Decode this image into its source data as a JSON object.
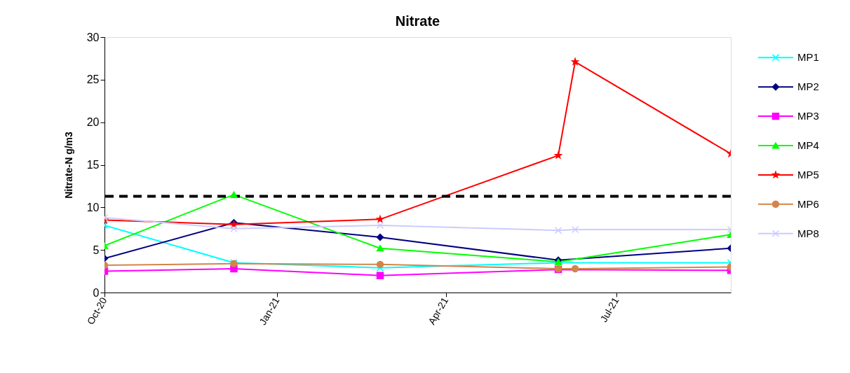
{
  "chart_data": {
    "type": "line",
    "title": "Nitrate",
    "ylabel": "Nitrate-N g/m3",
    "xlim": [
      "2020-10-01",
      "2021-08-31"
    ],
    "ylim": [
      0,
      30
    ],
    "yticks": [
      0,
      5,
      10,
      15,
      20,
      25,
      30
    ],
    "xticks": [
      {
        "value": "2020-10-01",
        "label": "Oct-20"
      },
      {
        "value": "2021-01-01",
        "label": "Jan-21"
      },
      {
        "value": "2021-04-01",
        "label": "Apr-21"
      },
      {
        "value": "2021-07-01",
        "label": "Jul-21"
      }
    ],
    "grid": false,
    "legend": "right",
    "line_style": "solid",
    "ref_lines": [
      {
        "axis": "y",
        "value": 11.3,
        "color": "#000000",
        "line_style": "dashed"
      }
    ],
    "series": [
      {
        "name": "MP1",
        "color": "#00ffff",
        "marker": "cross",
        "x": [
          "2020-10-01",
          "2020-12-09",
          "2021-02-25",
          "2021-05-31",
          "2021-08-31"
        ],
        "values": [
          7.9,
          3.5,
          2.9,
          3.5,
          3.5
        ]
      },
      {
        "name": "MP2",
        "color": "#000080",
        "marker": "diamond",
        "x": [
          "2020-10-01",
          "2020-12-09",
          "2021-02-25",
          "2021-05-31",
          "2021-08-31"
        ],
        "values": [
          4.0,
          8.2,
          6.5,
          3.8,
          5.2
        ]
      },
      {
        "name": "MP3",
        "color": "#ff00ff",
        "marker": "square",
        "x": [
          "2020-10-01",
          "2020-12-09",
          "2021-02-25",
          "2021-05-31",
          "2021-08-31"
        ],
        "values": [
          2.5,
          2.8,
          2.0,
          2.7,
          2.6
        ]
      },
      {
        "name": "MP4",
        "color": "#00ff00",
        "marker": "triangle",
        "x": [
          "2020-10-01",
          "2020-12-09",
          "2021-02-25",
          "2021-05-31",
          "2021-08-31"
        ],
        "values": [
          5.5,
          11.5,
          5.2,
          3.6,
          6.8
        ]
      },
      {
        "name": "MP5",
        "color": "#ff0000",
        "marker": "star",
        "x": [
          "2020-10-01",
          "2020-12-09",
          "2021-02-25",
          "2021-05-31",
          "2021-06-09",
          "2021-08-31"
        ],
        "values": [
          8.5,
          8.0,
          8.6,
          16.1,
          27.1,
          16.3
        ]
      },
      {
        "name": "MP6",
        "color": "#d2854a",
        "marker": "circle",
        "x": [
          "2020-10-01",
          "2020-12-09",
          "2021-02-25",
          "2021-05-31",
          "2021-06-09",
          "2021-08-31"
        ],
        "values": [
          3.2,
          3.4,
          3.3,
          2.8,
          2.8,
          3.0
        ]
      },
      {
        "name": "MP8",
        "color": "#ccccff",
        "marker": "cross",
        "x": [
          "2020-10-01",
          "2020-12-09",
          "2021-02-25",
          "2021-05-31",
          "2021-06-09",
          "2021-08-31"
        ],
        "values": [
          8.8,
          7.5,
          7.9,
          7.3,
          7.4,
          7.4
        ]
      }
    ]
  }
}
